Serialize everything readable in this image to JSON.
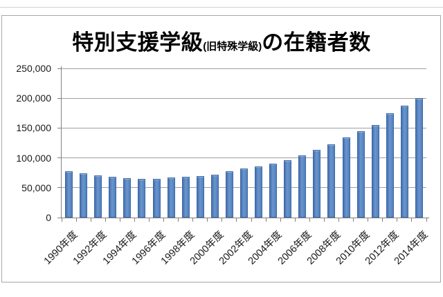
{
  "page": {
    "divider_color": "#cfcfcf"
  },
  "chart": {
    "title_main": "特別支援学級",
    "title_note": "(旧特殊学級)",
    "title_tail": "の在籍者数"
  },
  "chart_data": {
    "type": "bar",
    "title": "特別支援学級(旧特殊学級)の在籍者数",
    "categories": [
      1990,
      1991,
      1992,
      1993,
      1994,
      1995,
      1996,
      1997,
      1998,
      1999,
      2000,
      2001,
      2002,
      2003,
      2004,
      2005,
      2006,
      2007,
      2008,
      2009,
      2010,
      2011,
      2012,
      2013,
      2014
    ],
    "values": [
      77000,
      74200,
      71000,
      68000,
      66300,
      64500,
      64900,
      66800,
      68300,
      69500,
      72000,
      77000,
      82500,
      86000,
      90200,
      95800,
      104000,
      113000,
      123000,
      134300,
      145200,
      155500,
      174700,
      187500,
      200500
    ],
    "x_tick_labels": [
      "1990年度",
      "1992年度",
      "1994年度",
      "1996年度",
      "1998年度",
      "2000年度",
      "2002年度",
      "2004年度",
      "2006年度",
      "2008年度",
      "2010年度",
      "2012年度",
      "2014年度"
    ],
    "x_tick_every": 2,
    "y_ticks": {
      "values": [
        0,
        50000,
        100000,
        150000,
        200000,
        250000
      ],
      "labels": [
        "0",
        "50,000",
        "100,000",
        "150,000",
        "200,000",
        "250,000"
      ]
    },
    "ylim": [
      0,
      250000
    ],
    "grid": true,
    "legend": false,
    "colors": {
      "bar_fill": "#4f81bd",
      "bar_border": "#3b68a5",
      "gridline": "#9f9f9f",
      "axis": "#808080",
      "frame": "#a6a6a6",
      "text": "#1a1a1a"
    }
  }
}
